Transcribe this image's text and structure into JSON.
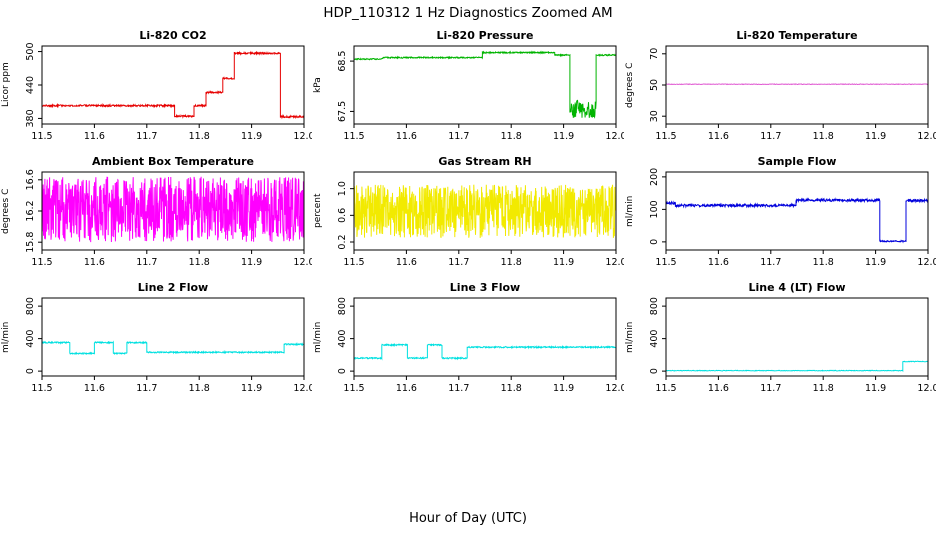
{
  "header": {
    "title": "HDP_110312  1 Hz Diagnostics Zoomed AM"
  },
  "footer": {
    "xlabel": "Hour of Day (UTC)"
  },
  "chart_data": [
    {
      "type": "line",
      "title": "Li-820 CO2",
      "ylabel": "Licor ppm",
      "color": "#e60000",
      "xlim": [
        11.5,
        12.0
      ],
      "xticks": [
        11.5,
        11.6,
        11.7,
        11.8,
        11.9,
        12.0
      ],
      "xtick_labels": [
        "11.5",
        "11.6",
        "11.7",
        "11.8",
        "11.9",
        "12.0"
      ],
      "ylim": [
        370,
        510
      ],
      "yticks": [
        380,
        440,
        500
      ],
      "ytick_labels": [
        "380",
        "440",
        "500"
      ],
      "noise": 1.6,
      "n": 700,
      "segments": [
        [
          11.5,
          11.753,
          403
        ],
        [
          11.753,
          11.79,
          384
        ],
        [
          11.79,
          11.813,
          403
        ],
        [
          11.813,
          11.845,
          427
        ],
        [
          11.845,
          11.867,
          452
        ],
        [
          11.867,
          11.955,
          497
        ],
        [
          11.955,
          12.0,
          383
        ]
      ]
    },
    {
      "type": "line",
      "title": "Li-820 Pressure",
      "ylabel": "kPa",
      "color": "#00b400",
      "xlim": [
        11.5,
        12.0
      ],
      "xticks": [
        11.5,
        11.6,
        11.7,
        11.8,
        11.9,
        12.0
      ],
      "xtick_labels": [
        "11.5",
        "11.6",
        "11.7",
        "11.8",
        "11.9",
        "12.0"
      ],
      "ylim": [
        67.25,
        68.8
      ],
      "yticks": [
        67.5,
        68.5
      ],
      "ytick_labels": [
        "67.5",
        "68.5"
      ],
      "noise": 0.012,
      "n": 700,
      "segments": [
        [
          11.5,
          11.555,
          68.54
        ],
        [
          11.555,
          11.745,
          68.57
        ],
        [
          11.745,
          11.883,
          68.67
        ],
        [
          11.883,
          11.912,
          68.62
        ],
        [
          11.912,
          11.962,
          67.55,
          0.18
        ],
        [
          11.962,
          12.0,
          68.62
        ]
      ]
    },
    {
      "type": "line",
      "title": "Li-820 Temperature",
      "ylabel": "degrees C",
      "color": "#e05ad2",
      "xlim": [
        11.5,
        12.0
      ],
      "xticks": [
        11.5,
        11.6,
        11.7,
        11.8,
        11.9,
        12.0
      ],
      "xtick_labels": [
        "11.5",
        "11.6",
        "11.7",
        "11.8",
        "11.9",
        "12.0"
      ],
      "ylim": [
        25,
        75
      ],
      "yticks": [
        30,
        50,
        70
      ],
      "ytick_labels": [
        "30",
        "50",
        "70"
      ],
      "noise": 0.2,
      "n": 450,
      "segments": [
        [
          11.5,
          12.0,
          50.5
        ]
      ]
    },
    {
      "type": "line",
      "title": "Ambient Box Temperature",
      "ylabel": "degrees C",
      "color": "#ff00ff",
      "xlim": [
        11.5,
        12.0
      ],
      "xticks": [
        11.5,
        11.6,
        11.7,
        11.8,
        11.9,
        12.0
      ],
      "xtick_labels": [
        "11.5",
        "11.6",
        "11.7",
        "11.8",
        "11.9",
        "12.0"
      ],
      "ylim": [
        15.7,
        16.7
      ],
      "yticks": [
        15.8,
        16.2,
        16.6
      ],
      "ytick_labels": [
        "15.8",
        "16.2",
        "16.6"
      ],
      "noise": 0.42,
      "n": 900,
      "segments": [
        [
          11.5,
          12.0,
          16.22
        ]
      ]
    },
    {
      "type": "line",
      "title": "Gas Stream RH",
      "ylabel": "percent",
      "color": "#f2ea00",
      "xlim": [
        11.5,
        12.0
      ],
      "xticks": [
        11.5,
        11.6,
        11.7,
        11.8,
        11.9,
        12.0
      ],
      "xtick_labels": [
        "11.5",
        "11.6",
        "11.7",
        "11.8",
        "11.9",
        "12.0"
      ],
      "ylim": [
        0.08,
        1.25
      ],
      "yticks": [
        0.2,
        0.6,
        1.0
      ],
      "ytick_labels": [
        "0.2",
        "0.6",
        "1.0"
      ],
      "noise": 0.4,
      "n": 900,
      "segments": [
        [
          11.5,
          12.0,
          0.66
        ]
      ]
    },
    {
      "type": "line",
      "title": "Sample Flow",
      "ylabel": "ml/min",
      "color": "#0000dc",
      "xlim": [
        11.5,
        12.0
      ],
      "xticks": [
        11.5,
        11.6,
        11.7,
        11.8,
        11.9,
        12.0
      ],
      "xtick_labels": [
        "11.5",
        "11.6",
        "11.7",
        "11.8",
        "11.9",
        "12.0"
      ],
      "ylim": [
        -25,
        215
      ],
      "yticks": [
        0,
        100,
        200
      ],
      "ytick_labels": [
        "0",
        "100",
        "200"
      ],
      "noise": 4,
      "n": 700,
      "segments": [
        [
          11.5,
          11.518,
          119
        ],
        [
          11.518,
          11.748,
          112
        ],
        [
          11.748,
          11.908,
          128
        ],
        [
          11.908,
          11.958,
          2,
          2
        ],
        [
          11.958,
          12.0,
          127
        ]
      ]
    },
    {
      "type": "line",
      "title": "Line 2 Flow",
      "ylabel": "ml/min",
      "color": "#00e0e0",
      "xlim": [
        11.5,
        12.0
      ],
      "xticks": [
        11.5,
        11.6,
        11.7,
        11.8,
        11.9,
        12.0
      ],
      "xtick_labels": [
        "11.5",
        "11.6",
        "11.7",
        "11.8",
        "11.9",
        "12.0"
      ],
      "ylim": [
        -60,
        900
      ],
      "yticks": [
        0,
        400,
        800
      ],
      "ytick_labels": [
        "0",
        "400",
        "800"
      ],
      "noise": 8,
      "n": 700,
      "segments": [
        [
          11.5,
          11.553,
          352
        ],
        [
          11.553,
          11.6,
          218
        ],
        [
          11.6,
          11.636,
          352
        ],
        [
          11.636,
          11.662,
          218
        ],
        [
          11.662,
          11.7,
          352
        ],
        [
          11.7,
          11.962,
          232
        ],
        [
          11.962,
          12.0,
          330
        ]
      ]
    },
    {
      "type": "line",
      "title": "Line 3 Flow",
      "ylabel": "ml/min",
      "color": "#00e0e0",
      "xlim": [
        11.5,
        12.0
      ],
      "xticks": [
        11.5,
        11.6,
        11.7,
        11.8,
        11.9,
        12.0
      ],
      "xtick_labels": [
        "11.5",
        "11.6",
        "11.7",
        "11.8",
        "11.9",
        "12.0"
      ],
      "ylim": [
        -60,
        900
      ],
      "yticks": [
        0,
        400,
        800
      ],
      "ytick_labels": [
        "0",
        "400",
        "800"
      ],
      "noise": 8,
      "n": 700,
      "segments": [
        [
          11.5,
          11.553,
          160
        ],
        [
          11.553,
          11.602,
          322
        ],
        [
          11.602,
          11.64,
          160
        ],
        [
          11.64,
          11.668,
          322
        ],
        [
          11.668,
          11.716,
          160
        ],
        [
          11.716,
          12.0,
          295
        ]
      ]
    },
    {
      "type": "line",
      "title": "Line 4 (LT) Flow",
      "ylabel": "ml/min",
      "color": "#00e0e0",
      "xlim": [
        11.5,
        12.0
      ],
      "xticks": [
        11.5,
        11.6,
        11.7,
        11.8,
        11.9,
        12.0
      ],
      "xtick_labels": [
        "11.5",
        "11.6",
        "11.7",
        "11.8",
        "11.9",
        "12.0"
      ],
      "ylim": [
        -60,
        900
      ],
      "yticks": [
        0,
        400,
        800
      ],
      "ytick_labels": [
        "0",
        "400",
        "800"
      ],
      "noise": 4,
      "n": 500,
      "segments": [
        [
          11.5,
          11.952,
          6
        ],
        [
          11.952,
          12.0,
          118
        ]
      ]
    }
  ]
}
